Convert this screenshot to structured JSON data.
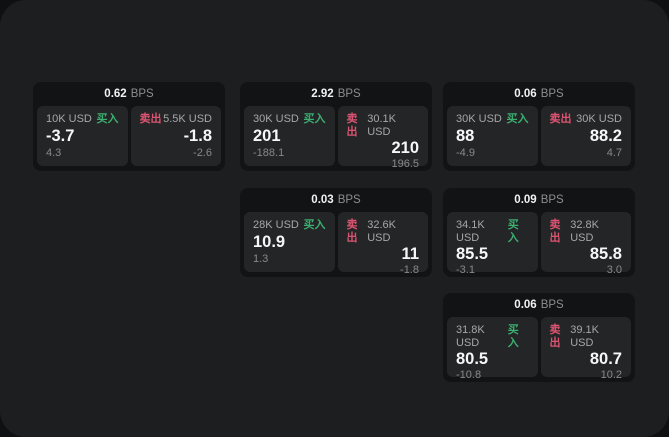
{
  "labels": {
    "bps_unit": "BPS",
    "buy": "买入",
    "sell": "卖出"
  },
  "colors": {
    "surface_bg": "#1d1e1f",
    "card_bg": "#121314",
    "tile_bg": "#242526",
    "buy_accent": "#3cae71",
    "sell_accent": "#dc5471"
  },
  "cards": [
    {
      "bps": "0.62",
      "buy": {
        "size": "10K USD",
        "value": "-3.7",
        "delta": "4.3"
      },
      "sell": {
        "size": "5.5K USD",
        "value": "-1.8",
        "delta": "-2.6"
      }
    },
    {
      "bps": "2.92",
      "buy": {
        "size": "30K USD",
        "value": "201",
        "delta": "-188.1"
      },
      "sell": {
        "size": "30.1K USD",
        "value": "210",
        "delta": "196.5"
      }
    },
    {
      "bps": "0.06",
      "buy": {
        "size": "30K USD",
        "value": "88",
        "delta": "-4.9"
      },
      "sell": {
        "size": "30K USD",
        "value": "88.2",
        "delta": "4.7"
      }
    },
    {
      "bps": "0.03",
      "buy": {
        "size": "28K USD",
        "value": "10.9",
        "delta": "1.3"
      },
      "sell": {
        "size": "32.6K USD",
        "value": "11",
        "delta": "-1.8"
      }
    },
    {
      "bps": "0.09",
      "buy": {
        "size": "34.1K USD",
        "value": "85.5",
        "delta": "-3.1"
      },
      "sell": {
        "size": "32.8K USD",
        "value": "85.8",
        "delta": "3.0"
      }
    },
    {
      "bps": "0.06",
      "buy": {
        "size": "31.8K USD",
        "value": "80.5",
        "delta": "-10.8"
      },
      "sell": {
        "size": "39.1K USD",
        "value": "80.7",
        "delta": "10.2"
      }
    }
  ]
}
